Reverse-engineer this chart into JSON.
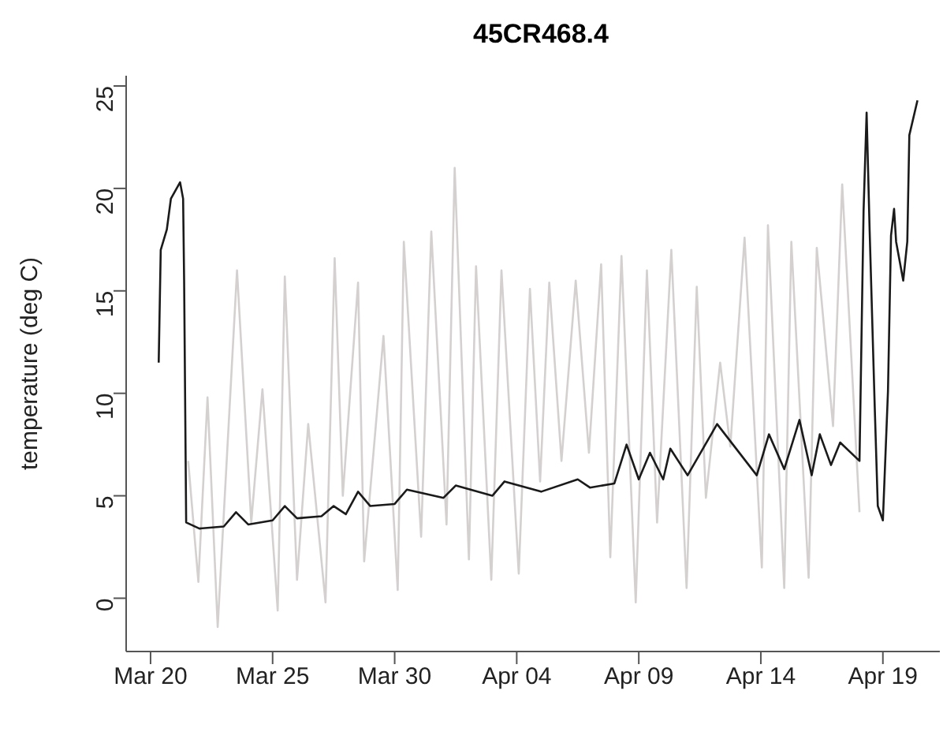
{
  "chart_data": {
    "type": "line",
    "title": "45CR468.4",
    "ylabel": "temperature (deg C)",
    "xlim": [
      "--03-19",
      "--04-21T08:00"
    ],
    "ylim": [
      -2.6,
      25.5
    ],
    "yticks": [
      0,
      5,
      10,
      15,
      20,
      25
    ],
    "xticks": [
      {
        "value": "--03-20",
        "label": "Mar 20"
      },
      {
        "value": "--03-25",
        "label": "Mar 25"
      },
      {
        "value": "--03-30",
        "label": "Mar 30"
      },
      {
        "value": "--04-04",
        "label": "Apr 04"
      },
      {
        "value": "--04-09",
        "label": "Apr 09"
      },
      {
        "value": "--04-14",
        "label": "Apr 14"
      },
      {
        "value": "--04-19",
        "label": "Apr 19"
      }
    ],
    "grid": false,
    "marker": "none",
    "line_style": "solid",
    "series": [
      {
        "color": "#d4d0d0",
        "x": [
          "--03-21T13:00",
          "--03-21T23:00",
          "--03-22T08:00",
          "--03-22T18:00",
          "--03-23T13:00",
          "--03-24T03:00",
          "--03-24T14:00",
          "--03-25T05:00",
          "--03-25T12:00",
          "--03-26T00:00",
          "--03-26T11:00",
          "--03-27T04:00",
          "--03-27T13:00",
          "--03-27T21:00",
          "--03-28T12:00",
          "--03-28T18:00",
          "--03-29T13:00",
          "--03-30T03:00",
          "--03-30T09:00",
          "--03-31T02:00",
          "--03-31T12:00",
          "--04-01T03:00",
          "--04-01T11:00",
          "--04-02T01:00",
          "--04-02T08:00",
          "--04-02T23:00",
          "--04-03T09:00",
          "--04-04T02:00",
          "--04-04T13:00",
          "--04-04T23:00",
          "--04-05T08:00",
          "--04-05T20:00",
          "--04-06T10:00",
          "--04-06T23:00",
          "--04-07T11:00",
          "--04-07T20:00",
          "--04-08T07:00",
          "--04-08T21:00",
          "--04-09T08:00",
          "--04-09T18:00",
          "--04-10T08:00",
          "--04-10T23:00",
          "--04-11T09:00",
          "--04-11T18:00",
          "--04-12T08:00",
          "--04-12T18:00",
          "--04-13T08:00",
          "--04-14T01:00",
          "--04-14T07:00",
          "--04-14T23:00",
          "--04-15T06:00",
          "--04-15T23:00",
          "--04-16T07:00",
          "--04-16T23:00",
          "--04-17T08:00",
          "--04-18T01:00"
        ],
        "values": [
          6.7,
          0.8,
          9.8,
          -1.4,
          16.0,
          3.7,
          10.2,
          -0.6,
          15.7,
          0.9,
          8.5,
          -0.2,
          16.6,
          5.0,
          15.4,
          1.8,
          12.8,
          0.4,
          17.4,
          3.0,
          17.9,
          3.6,
          21.0,
          1.9,
          16.2,
          0.9,
          16.0,
          1.2,
          15.1,
          5.7,
          15.4,
          6.7,
          15.5,
          7.1,
          16.3,
          2.0,
          16.7,
          -0.2,
          16.0,
          3.7,
          17.0,
          0.5,
          15.2,
          4.9,
          11.5,
          7.4,
          17.6,
          1.5,
          18.2,
          0.5,
          17.4,
          1.0,
          17.1,
          8.4,
          20.2,
          4.2
        ]
      },
      {
        "color": "#1a1a1a",
        "x": [
          "--03-20T08:00",
          "--03-20T10:00",
          "--03-20T16:00",
          "--03-20T20:00",
          "--03-21T05:00",
          "--03-21T08:00",
          "--03-21T09:00",
          "--03-21T11:00",
          "--03-22T00:00",
          "--03-23T00:00",
          "--03-23T12:00",
          "--03-24T00:00",
          "--03-25T00:00",
          "--03-25T12:00",
          "--03-26T00:00",
          "--03-27T00:00",
          "--03-27T12:00",
          "--03-28T00:00",
          "--03-28T12:00",
          "--03-29T00:00",
          "--03-30T00:00",
          "--03-30T12:00",
          "--04-01T00:00",
          "--04-01T12:00",
          "--04-03T00:00",
          "--04-03T12:00",
          "--04-05T00:00",
          "--04-06T12:00",
          "--04-07T00:00",
          "--04-08T00:00",
          "--04-08T12:00",
          "--04-09T00:00",
          "--04-09T11:00",
          "--04-10T00:00",
          "--04-10T07:00",
          "--04-11T00:00",
          "--04-12T05:00",
          "--04-13T20:00",
          "--04-14T08:00",
          "--04-14T23:00",
          "--04-15T14:00",
          "--04-16T02:00",
          "--04-16T10:00",
          "--04-16T21:00",
          "--04-17T06:00",
          "--04-18T01:00",
          "--04-18T05:00",
          "--04-18T08:00",
          "--04-18T11:00",
          "--04-18T16:00",
          "--04-18T19:00",
          "--04-19T00:00",
          "--04-19T05:00",
          "--04-19T08:00",
          "--04-19T11:00",
          "--04-19T13:00",
          "--04-19T20:00",
          "--04-20T00:00",
          "--04-20T02:00",
          "--04-20T10:00"
        ],
        "values": [
          11.5,
          17.0,
          18.0,
          19.5,
          20.3,
          19.5,
          15.5,
          3.7,
          3.4,
          3.5,
          4.2,
          3.6,
          3.8,
          4.5,
          3.9,
          4.0,
          4.5,
          4.1,
          5.2,
          4.5,
          4.6,
          5.3,
          4.9,
          5.5,
          5.0,
          5.7,
          5.2,
          5.8,
          5.4,
          5.6,
          7.5,
          5.8,
          7.1,
          5.8,
          7.3,
          6.0,
          8.5,
          6.0,
          8.0,
          6.3,
          8.7,
          6.0,
          8.0,
          6.5,
          7.6,
          6.7,
          18.9,
          23.7,
          17.9,
          9.3,
          4.5,
          3.8,
          10.1,
          17.7,
          19.0,
          17.4,
          15.5,
          17.4,
          22.6,
          24.3
        ]
      }
    ]
  }
}
